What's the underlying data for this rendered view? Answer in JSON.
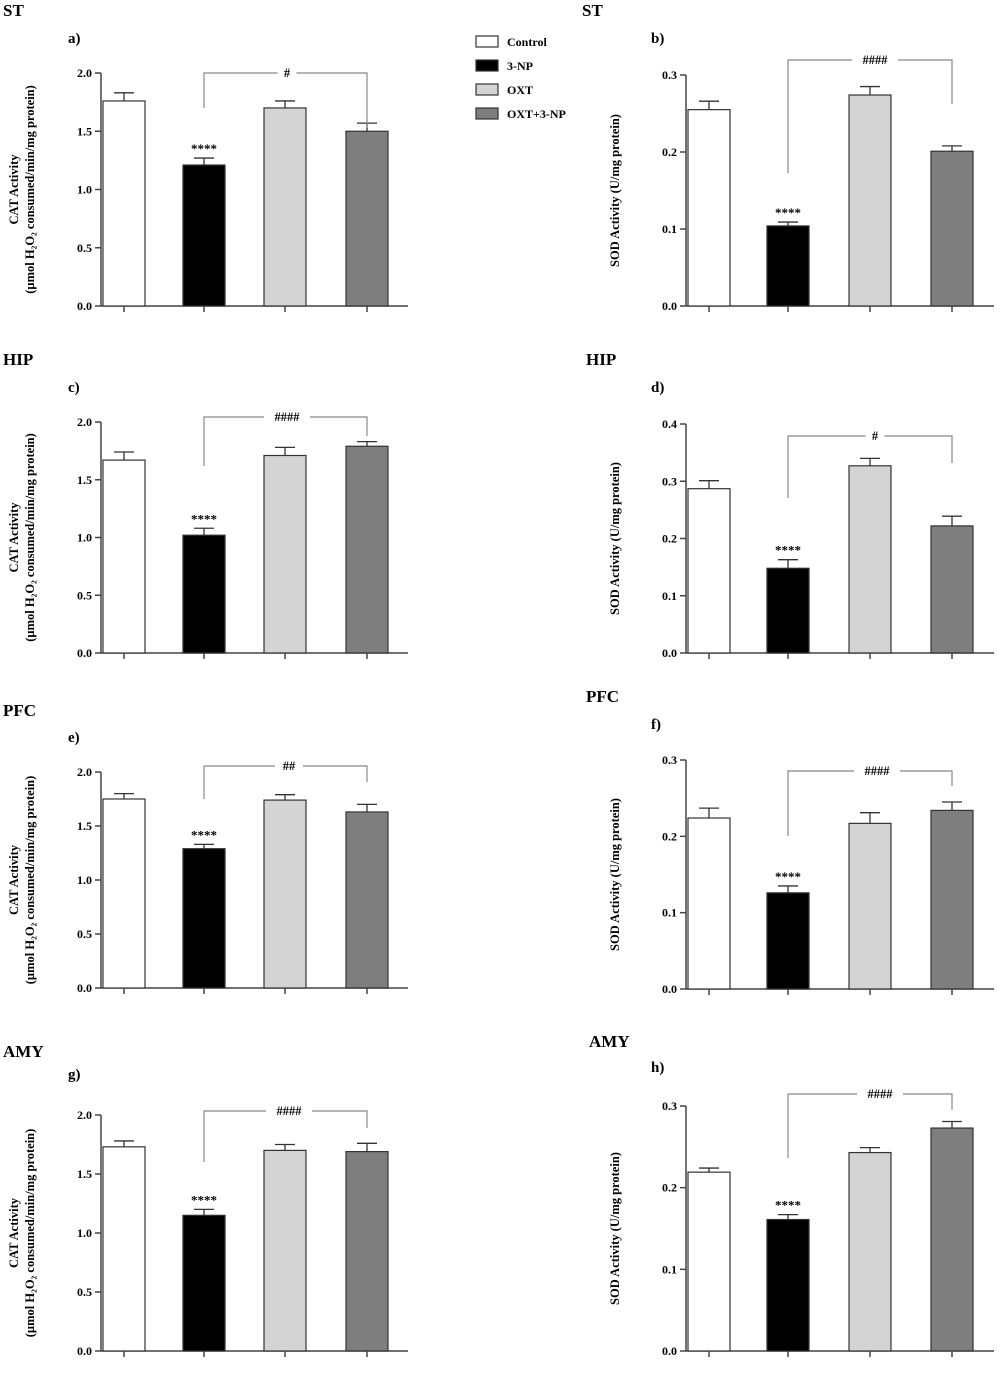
{
  "colors": {
    "Control": "#ffffff",
    "3-NP": "#000000",
    "OXT": "#d4d4d4",
    "OXT+3-NP": "#7e7e7e",
    "stroke": "#444444",
    "bracket": "#888888"
  },
  "legend": {
    "items": [
      "Control",
      "3-NP",
      "OXT",
      "OXT+3-NP"
    ],
    "placement": "top-center"
  },
  "chart_data": [
    {
      "type": "bar",
      "panel": "a)",
      "region": "ST",
      "categories": [
        "Control",
        "3-NP",
        "OXT",
        "OXT+3-NP"
      ],
      "values": [
        1.76,
        1.21,
        1.7,
        1.5
      ],
      "errors": [
        0.07,
        0.06,
        0.06,
        0.07
      ],
      "ylabel_line1": "CAT Activity",
      "ylabel_line2": "(µmol H₂O₂ consumed/min/mg protein)",
      "ylim": [
        0,
        2.0
      ],
      "yticks": [
        "0.0",
        "0.5",
        "1.0",
        "1.5",
        "2.0"
      ],
      "significance": "****",
      "comparison": "#"
    },
    {
      "type": "bar",
      "panel": "b)",
      "region": "ST",
      "categories": [
        "Control",
        "3-NP",
        "OXT",
        "OXT+3-NP"
      ],
      "values": [
        0.255,
        0.104,
        0.274,
        0.201
      ],
      "errors": [
        0.011,
        0.005,
        0.011,
        0.007
      ],
      "ylabel_line1": "SOD Activity (U/mg protein)",
      "ylabel_line2": "",
      "ylim": [
        0,
        0.3
      ],
      "yticks": [
        "0.0",
        "0.1",
        "0.2",
        "0.3"
      ],
      "significance": "****",
      "comparison": "####"
    },
    {
      "type": "bar",
      "panel": "c)",
      "region": "HIP",
      "categories": [
        "Control",
        "3-NP",
        "OXT",
        "OXT+3-NP"
      ],
      "values": [
        1.67,
        1.02,
        1.71,
        1.79
      ],
      "errors": [
        0.07,
        0.06,
        0.07,
        0.04
      ],
      "ylabel_line1": "CAT Activity",
      "ylabel_line2": "(µmol H₂O₂ consumed/min/mg protein)",
      "ylim": [
        0,
        2.0
      ],
      "yticks": [
        "0.0",
        "0.5",
        "1.0",
        "1.5",
        "2.0"
      ],
      "significance": "****",
      "comparison": "####"
    },
    {
      "type": "bar",
      "panel": "d)",
      "region": "HIP",
      "categories": [
        "Control",
        "3-NP",
        "OXT",
        "OXT+3-NP"
      ],
      "values": [
        0.287,
        0.148,
        0.327,
        0.222
      ],
      "errors": [
        0.014,
        0.015,
        0.013,
        0.017
      ],
      "ylabel_line1": "SOD Activity (U/mg protein)",
      "ylabel_line2": "",
      "ylim": [
        0,
        0.4
      ],
      "yticks": [
        "0.0",
        "0.1",
        "0.2",
        "0.3",
        "0.4"
      ],
      "significance": "****",
      "comparison": "#"
    },
    {
      "type": "bar",
      "panel": "e)",
      "region": "PFC",
      "categories": [
        "Control",
        "3-NP",
        "OXT",
        "OXT+3-NP"
      ],
      "values": [
        1.75,
        1.29,
        1.74,
        1.63
      ],
      "errors": [
        0.05,
        0.04,
        0.05,
        0.07
      ],
      "ylabel_line1": "CAT Activity",
      "ylabel_line2": "(µmol H₂O₂ consumed/min/mg protein)",
      "ylim": [
        0,
        2.0
      ],
      "yticks": [
        "0.0",
        "0.5",
        "1.0",
        "1.5",
        "2.0"
      ],
      "significance": "****",
      "comparison": "##"
    },
    {
      "type": "bar",
      "panel": "f)",
      "region": "PFC",
      "categories": [
        "Control",
        "3-NP",
        "OXT",
        "OXT+3-NP"
      ],
      "values": [
        0.224,
        0.126,
        0.217,
        0.234
      ],
      "errors": [
        0.013,
        0.009,
        0.014,
        0.011
      ],
      "ylabel_line1": "SOD Activity (U/mg protein)",
      "ylabel_line2": "",
      "ylim": [
        0,
        0.3
      ],
      "yticks": [
        "0.0",
        "0.1",
        "0.2",
        "0.3"
      ],
      "significance": "****",
      "comparison": "####"
    },
    {
      "type": "bar",
      "panel": "g)",
      "region": "AMY",
      "categories": [
        "Control",
        "3-NP",
        "OXT",
        "OXT+3-NP"
      ],
      "values": [
        1.73,
        1.15,
        1.7,
        1.69
      ],
      "errors": [
        0.05,
        0.05,
        0.05,
        0.07
      ],
      "ylabel_line1": "CAT Activity",
      "ylabel_line2": "(µmol H₂O₂ consumed/min/mg protein)",
      "ylim": [
        0,
        2.0
      ],
      "yticks": [
        "0.0",
        "0.5",
        "1.0",
        "1.5",
        "2.0"
      ],
      "significance": "****",
      "comparison": "####"
    },
    {
      "type": "bar",
      "panel": "h)",
      "region": "AMY",
      "categories": [
        "Control",
        "3-NP",
        "OXT",
        "OXT+3-NP"
      ],
      "values": [
        0.219,
        0.161,
        0.243,
        0.273
      ],
      "errors": [
        0.005,
        0.006,
        0.006,
        0.008
      ],
      "ylabel_line1": "SOD Activity (U/mg protein)",
      "ylabel_line2": "",
      "ylim": [
        0,
        0.3
      ],
      "yticks": [
        "0.0",
        "0.1",
        "0.2",
        "0.3"
      ],
      "significance": "****",
      "comparison": "####"
    }
  ]
}
